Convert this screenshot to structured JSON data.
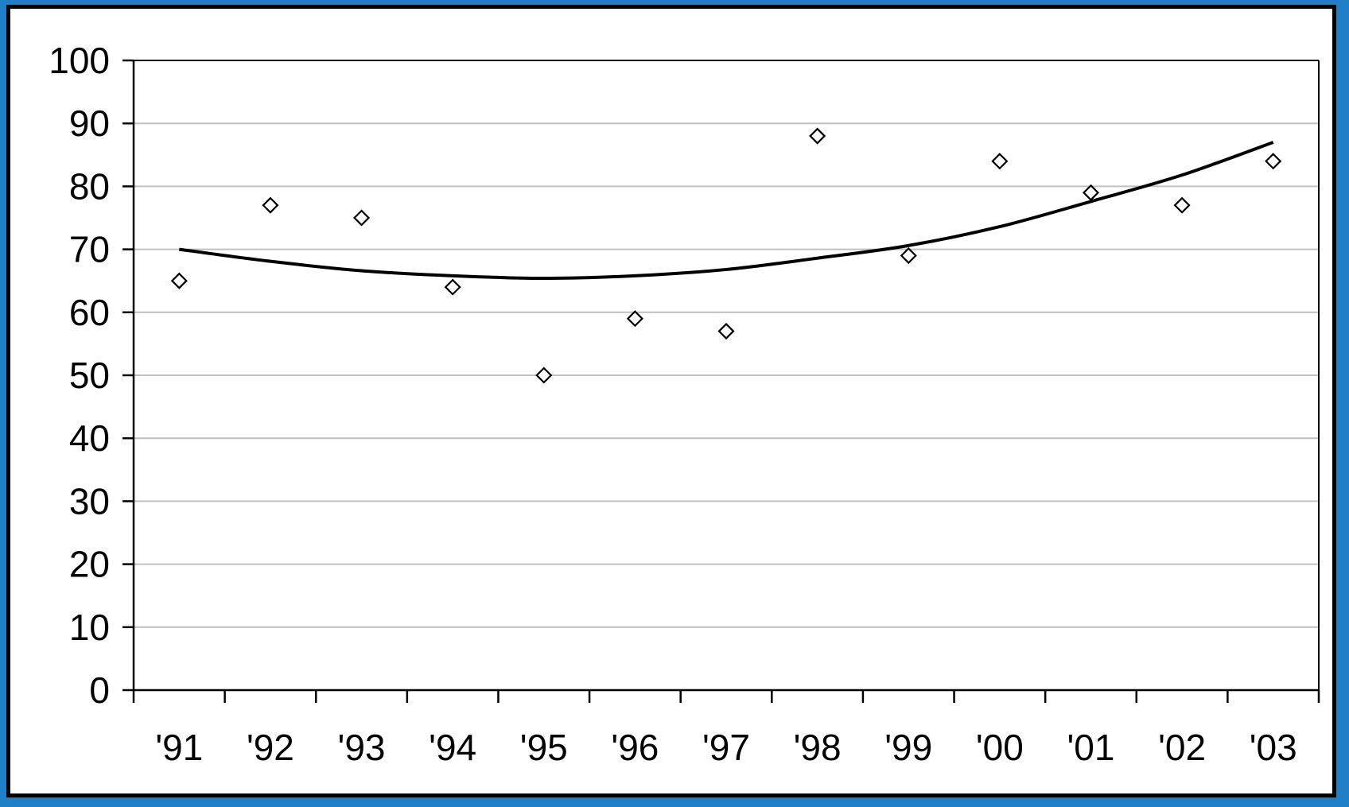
{
  "chart_data": {
    "type": "scatter",
    "title": "",
    "xlabel": "",
    "ylabel": "",
    "categories": [
      "'91",
      "'92",
      "'93",
      "'94",
      "'95",
      "'96",
      "'97",
      "'98",
      "'99",
      "'00",
      "'01",
      "'02",
      "'03"
    ],
    "ylim": [
      0,
      100
    ],
    "yticks": [
      0,
      10,
      20,
      30,
      40,
      50,
      60,
      70,
      80,
      90,
      100
    ],
    "grid": true,
    "legend": "none",
    "series": [
      {
        "type": "scatter",
        "marker": "diamond-open",
        "values": [
          65,
          77,
          75,
          64,
          50,
          59,
          57,
          88,
          69,
          84,
          79,
          77,
          84
        ]
      },
      {
        "type": "line",
        "style": "trendline-polynomial",
        "values": [
          70,
          68.1,
          66.6,
          65.8,
          65.4,
          65.8,
          66.8,
          68.6,
          70.6,
          73.6,
          77.6,
          81.8,
          87.0
        ]
      }
    ],
    "colors": {
      "marker": "#000000",
      "line": "#000000",
      "grid": "#c0c0c0",
      "frame_outer": "#1f7fc7"
    }
  }
}
